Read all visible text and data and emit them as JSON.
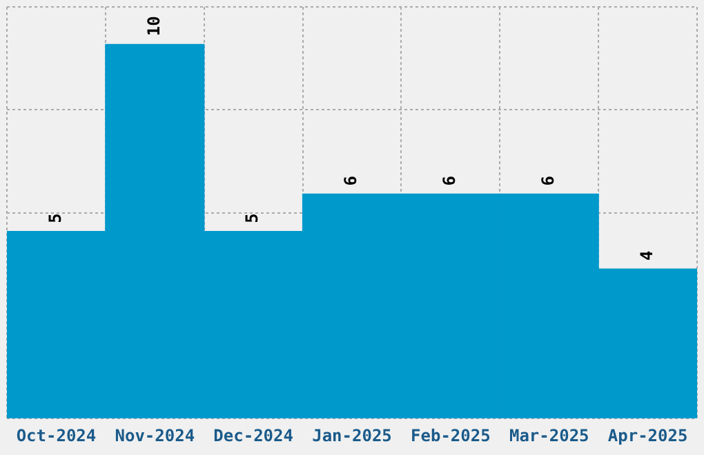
{
  "chart_data": {
    "type": "bar",
    "categories": [
      "Oct-2024",
      "Nov-2024",
      "Dec-2024",
      "Jan-2025",
      "Feb-2025",
      "Mar-2025",
      "Apr-2025"
    ],
    "values": [
      5,
      10,
      5,
      6,
      6,
      6,
      4
    ],
    "color": "#0099cc",
    "ylim": [
      0,
      11
    ],
    "tick_labels": "x",
    "grid": true,
    "legend": false,
    "data_labels": true
  }
}
